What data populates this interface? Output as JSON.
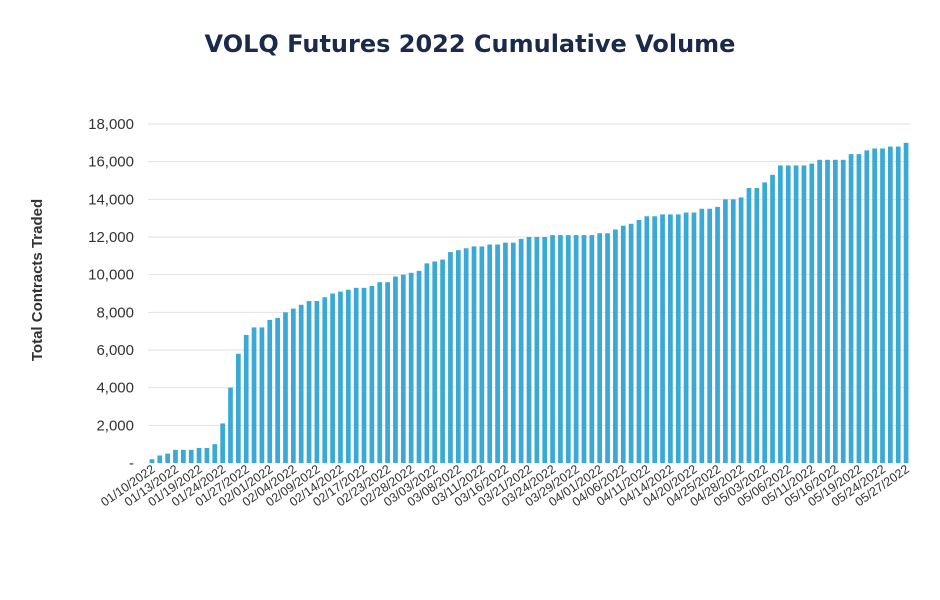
{
  "chart_data": {
    "type": "bar",
    "title": "VOLQ Futures 2022 Cumulative Volume",
    "xlabel": "",
    "ylabel": "Total Contracts Traded",
    "ylim": [
      0,
      18000
    ],
    "y_ticks": [
      0,
      2000,
      4000,
      6000,
      8000,
      10000,
      12000,
      14000,
      16000,
      18000
    ],
    "y_tick_labels": [
      "-",
      "2,000",
      "4,000",
      "6,000",
      "8,000",
      "10,000",
      "12,000",
      "14,000",
      "16,000",
      "18,000"
    ],
    "grid": true,
    "bar_color": "#3aa9d6",
    "tick_labels": [
      "01/10/2022",
      "01/13/2022",
      "01/19/2022",
      "01/24/2022",
      "01/27/2022",
      "02/01/2022",
      "02/04/2022",
      "02/09/2022",
      "02/14/2022",
      "02/17/2022",
      "02/23/2022",
      "02/28/2022",
      "03/03/2022",
      "03/08/2022",
      "03/11/2022",
      "03/16/2022",
      "03/21/2022",
      "03/24/2022",
      "03/29/2022",
      "04/01/2022",
      "04/06/2022",
      "04/11/2022",
      "04/14/2022",
      "04/20/2022",
      "04/25/2022",
      "04/28/2022",
      "05/03/2022",
      "05/06/2022",
      "05/11/2022",
      "05/16/2022",
      "05/19/2022",
      "05/24/2022",
      "05/27/2022"
    ],
    "values": [
      200,
      400,
      500,
      700,
      700,
      700,
      800,
      800,
      1000,
      2100,
      4000,
      5800,
      6800,
      7200,
      7200,
      7600,
      7700,
      8000,
      8200,
      8400,
      8600,
      8600,
      8800,
      9000,
      9100,
      9200,
      9300,
      9300,
      9400,
      9600,
      9600,
      9900,
      10000,
      10100,
      10200,
      10600,
      10700,
      10800,
      11200,
      11300,
      11400,
      11500,
      11500,
      11600,
      11600,
      11700,
      11700,
      11900,
      12000,
      12000,
      12000,
      12100,
      12100,
      12100,
      12100,
      12100,
      12100,
      12200,
      12200,
      12400,
      12600,
      12700,
      12900,
      13100,
      13100,
      13200,
      13200,
      13200,
      13300,
      13300,
      13500,
      13500,
      13600,
      14000,
      14000,
      14100,
      14600,
      14600,
      14900,
      15300,
      15800,
      15800,
      15800,
      15800,
      15900,
      16100,
      16100,
      16100,
      16100,
      16400,
      16400,
      16600,
      16700,
      16700,
      16800,
      16800,
      17000
    ]
  }
}
